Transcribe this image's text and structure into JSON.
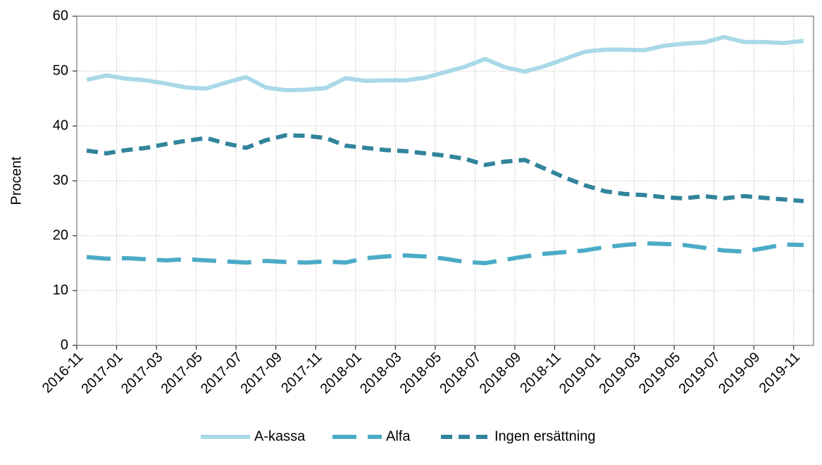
{
  "chart_data": {
    "type": "line",
    "y_label": "Procent",
    "categories": [
      "2016-11",
      null,
      "2017-01",
      null,
      "2017-03",
      null,
      "2017-05",
      null,
      "2017-07",
      null,
      "2017-09",
      null,
      "2017-11",
      null,
      "2018-01",
      null,
      "2018-03",
      null,
      "2018-05",
      null,
      "2018-07",
      null,
      "2018-09",
      null,
      "2018-11",
      null,
      "2019-01",
      null,
      "2019-03",
      null,
      "2019-05",
      null,
      "2019-07",
      null,
      "2019-09",
      null,
      "2019-11"
    ],
    "series": [
      {
        "name": "A-kassa",
        "color": "#a9d9e8",
        "dash": "solid",
        "values": [
          48.4,
          49.2,
          48.6,
          48.3,
          47.7,
          47.0,
          46.8,
          47.9,
          48.9,
          47.0,
          46.5,
          46.6,
          46.9,
          48.7,
          48.2,
          48.3,
          48.3,
          48.8,
          49.8,
          50.8,
          52.2,
          50.7,
          49.9,
          50.9,
          52.2,
          53.5,
          53.9,
          53.9,
          53.8,
          54.6,
          55.0,
          55.2,
          56.2,
          55.3,
          55.3,
          55.1,
          55.5
        ]
      },
      {
        "name": "Alfa",
        "color": "#4babc6",
        "dash": "long",
        "values": [
          16.1,
          15.8,
          15.9,
          15.7,
          15.5,
          15.7,
          15.5,
          15.3,
          15.1,
          15.4,
          15.2,
          15.1,
          15.3,
          15.1,
          15.9,
          16.2,
          16.4,
          16.2,
          15.8,
          15.2,
          15.0,
          15.6,
          16.2,
          16.7,
          17.0,
          17.3,
          17.9,
          18.3,
          18.6,
          18.5,
          18.3,
          17.8,
          17.3,
          17.1,
          17.7,
          18.4,
          18.3
        ]
      },
      {
        "name": "Ingen ersättning",
        "color": "#31849b",
        "dash": "short",
        "values": [
          35.5,
          35.0,
          35.6,
          36.0,
          36.7,
          37.3,
          37.8,
          36.8,
          36.0,
          37.4,
          38.3,
          38.2,
          37.8,
          36.4,
          36.0,
          35.6,
          35.4,
          35.0,
          34.6,
          34.0,
          32.9,
          33.5,
          33.8,
          32.2,
          30.6,
          29.2,
          28.1,
          27.6,
          27.4,
          27.0,
          26.8,
          27.2,
          26.8,
          27.2,
          26.9,
          26.6,
          26.3
        ]
      }
    ],
    "ylim": [
      0,
      60
    ],
    "yticks": [
      0,
      10,
      20,
      30,
      40,
      50,
      60
    ],
    "grid": true,
    "legend": "bottom"
  }
}
